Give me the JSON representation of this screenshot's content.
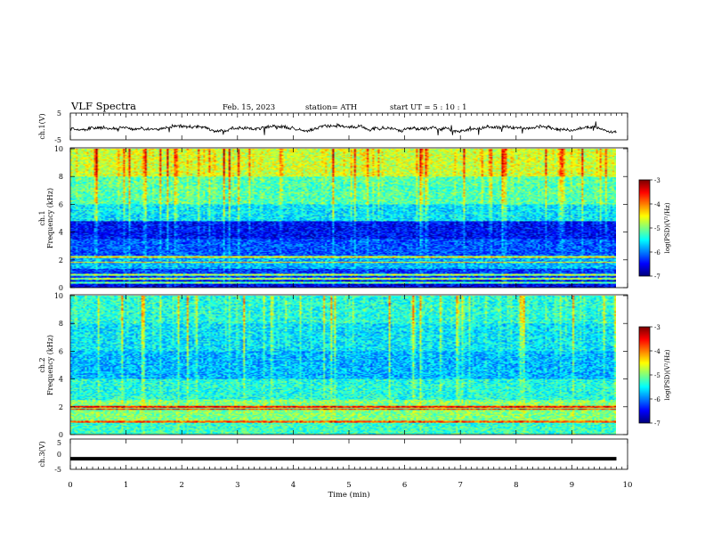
{
  "header": {
    "title": "VLF  Spectra",
    "date": "Feb. 15, 2023",
    "station": "station= ATH",
    "start_ut": "start  UT  =    5  : 10 : 1"
  },
  "chart_data": [
    {
      "type": "line",
      "panel": "ch1-waveform",
      "ylabel": "ch.1(V)",
      "ylim": [
        -5,
        5
      ],
      "y_tick_labels": [
        "5",
        "-5"
      ],
      "x_range_min": [
        0,
        9.8
      ],
      "trace_level_V": -0.8,
      "grid": false
    },
    {
      "type": "heatmap",
      "panel": "ch1-spectrogram",
      "ylabel_channel": "ch.1",
      "ylabel": "Frequency  (kHz)",
      "ylim": [
        0,
        10
      ],
      "y_tick_labels": [
        "0",
        "2",
        "4",
        "6",
        "8",
        "10"
      ],
      "x_range_min": [
        0,
        9.8
      ],
      "colorbar": {
        "label": "log(PSD)(V²/Hz)",
        "range": [
          -7,
          -3
        ],
        "tick_labels": [
          "-3",
          "-4",
          "-5",
          "-6",
          "-7"
        ]
      },
      "band_profile_kHz": [
        {
          "from": 8.0,
          "to": 10.0,
          "log_psd": -4.7
        },
        {
          "from": 6.0,
          "to": 8.0,
          "log_psd": -5.2
        },
        {
          "from": 4.8,
          "to": 6.0,
          "log_psd": -5.6
        },
        {
          "from": 3.5,
          "to": 4.8,
          "log_psd": -6.5
        },
        {
          "from": 2.2,
          "to": 3.5,
          "log_psd": -6.2
        },
        {
          "from": 1.3,
          "to": 2.2,
          "log_psd": -5.8
        },
        {
          "from": 0.5,
          "to": 1.3,
          "log_psd": -6.3
        },
        {
          "from": 0.0,
          "to": 0.5,
          "log_psd": -6.6
        }
      ],
      "persistent_lines_kHz": [
        2.2,
        1.8,
        0.9,
        0.6,
        0.3
      ]
    },
    {
      "type": "heatmap",
      "panel": "ch2-spectrogram",
      "ylabel_channel": "ch.2",
      "ylabel": "Frequency  (kHz)",
      "ylim": [
        0,
        10
      ],
      "y_tick_labels": [
        "0",
        "2",
        "4",
        "6",
        "8",
        "10"
      ],
      "x_range_min": [
        0,
        9.8
      ],
      "colorbar": {
        "label": "log(PSD)(V²/Hz)",
        "range": [
          -7,
          -3
        ],
        "tick_labels": [
          "-3",
          "-4",
          "-5",
          "-6",
          "-7"
        ]
      },
      "band_profile_kHz": [
        {
          "from": 8.0,
          "to": 10.0,
          "log_psd": -5.4
        },
        {
          "from": 6.0,
          "to": 8.0,
          "log_psd": -5.6
        },
        {
          "from": 4.0,
          "to": 6.0,
          "log_psd": -5.8
        },
        {
          "from": 2.5,
          "to": 4.0,
          "log_psd": -5.4
        },
        {
          "from": 1.0,
          "to": 2.5,
          "log_psd": -5.0
        },
        {
          "from": 0.0,
          "to": 1.0,
          "log_psd": -5.3
        }
      ],
      "persistent_lines_kHz": [
        2.0,
        1.8,
        0.9
      ]
    },
    {
      "type": "line",
      "panel": "ch3-waveform",
      "ylabel": "ch.3(V)",
      "ylim": [
        -5,
        5
      ],
      "y_tick_labels": [
        "5",
        "0",
        "-5"
      ],
      "x_range_min": [
        0,
        9.8
      ],
      "trace_level_V": -1.5,
      "grid": false
    }
  ],
  "x_axis": {
    "label": "Time  (min)",
    "range": [
      0,
      10
    ],
    "tick_labels": [
      "0",
      "1",
      "2",
      "3",
      "4",
      "5",
      "6",
      "7",
      "8",
      "9",
      "10"
    ]
  },
  "colors": {
    "colormap": [
      "#00007f",
      "#0000ff",
      "#007fff",
      "#00ffff",
      "#7fff7f",
      "#ffff00",
      "#ff7f00",
      "#ff0000",
      "#7f0000"
    ],
    "trace": "#000000"
  }
}
